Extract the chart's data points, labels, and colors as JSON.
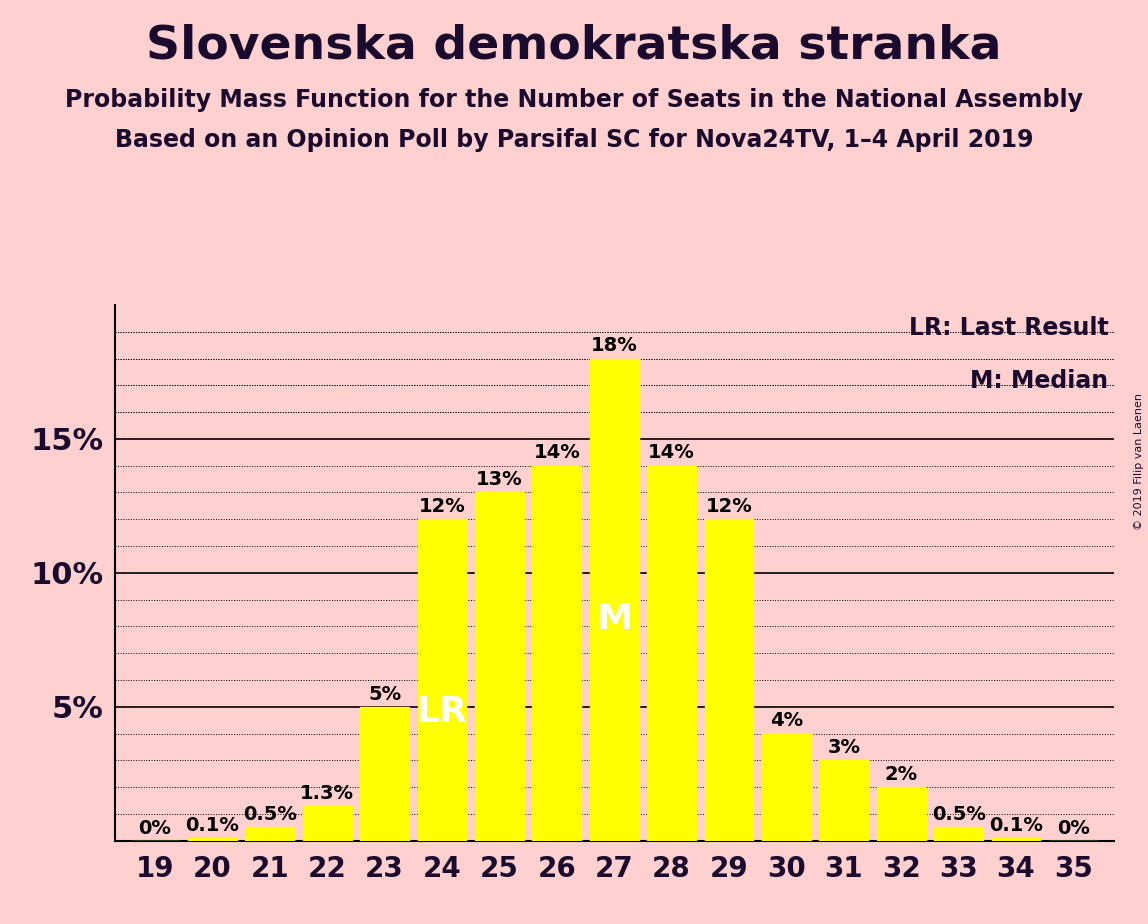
{
  "title": "Slovenska demokratska stranka",
  "subtitle1": "Probability Mass Function for the Number of Seats in the National Assembly",
  "subtitle2": "Based on an Opinion Poll by Parsifal SC for Nova24TV, 1–4 April 2019",
  "copyright": "© 2019 Filip van Laenen",
  "seats": [
    19,
    20,
    21,
    22,
    23,
    24,
    25,
    26,
    27,
    28,
    29,
    30,
    31,
    32,
    33,
    34,
    35
  ],
  "probabilities": [
    0.0,
    0.1,
    0.5,
    1.3,
    5.0,
    12.0,
    13.0,
    14.0,
    18.0,
    14.0,
    12.0,
    4.0,
    3.0,
    2.0,
    0.5,
    0.1,
    0.0
  ],
  "labels": [
    "0%",
    "0.1%",
    "0.5%",
    "1.3%",
    "5%",
    "12%",
    "13%",
    "14%",
    "18%",
    "14%",
    "12%",
    "4%",
    "3%",
    "2%",
    "0.5%",
    "0.1%",
    "0%"
  ],
  "bar_color": "#FFFF00",
  "background_color": "#FFD0D0",
  "lr_seat": 24,
  "median_seat": 27,
  "lr_label": "LR",
  "median_label": "M",
  "legend_lr": "LR: Last Result",
  "legend_m": "M: Median",
  "major_yticks": [
    5,
    10,
    15
  ],
  "minor_yticks": [
    1,
    2,
    3,
    4,
    6,
    7,
    8,
    9,
    11,
    12,
    13,
    14,
    16,
    17,
    18,
    19
  ],
  "ylim": [
    0,
    20
  ],
  "title_fontsize": 34,
  "subtitle_fontsize": 17,
  "bar_label_fontsize": 14,
  "axis_tick_fontsize": 20,
  "ytick_fontsize": 22,
  "legend_fontsize": 17,
  "inbar_label_fontsize": 26
}
